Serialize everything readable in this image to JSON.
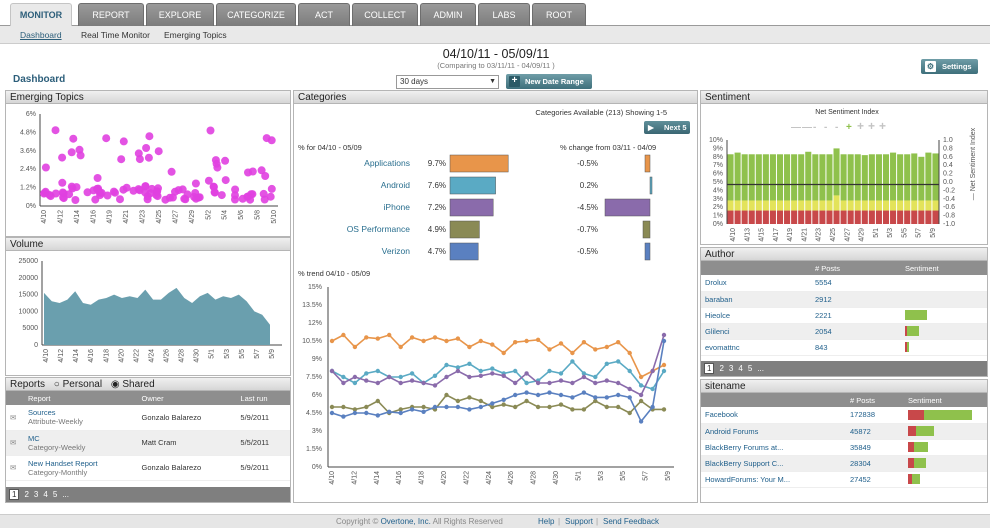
{
  "nav": {
    "tabs": [
      "MONITOR",
      "REPORT",
      "EXPLORE",
      "CATEGORIZE",
      "ACT",
      "COLLECT",
      "ADMIN",
      "LABS",
      "ROOT"
    ],
    "subnav": [
      "Dashboard",
      "Real Time Monitor",
      "Emerging Topics"
    ]
  },
  "header": {
    "page_title": "Dashboard",
    "date_range": "04/10/11 - 05/09/11",
    "compare": "(Comparing to 03/11/11 - 04/09/11 )",
    "range_value": "30 days",
    "new_range_label": "New Date Range",
    "settings_label": "Settings"
  },
  "emerging": {
    "title": "Emerging Topics",
    "y_ticks": [
      "6%",
      "4.8%",
      "3.6%",
      "2.4%",
      "1.2%",
      "0%"
    ],
    "x_ticks": [
      "4/10",
      "4/12",
      "4/14",
      "4/16",
      "4/19",
      "4/21",
      "4/23",
      "4/25",
      "4/27",
      "4/29",
      "5/2",
      "5/4",
      "5/6",
      "5/8",
      "5/10"
    ],
    "color": "#e040e0"
  },
  "volume": {
    "title": "Volume",
    "y_ticks": [
      "25000",
      "20000",
      "15000",
      "10000",
      "5000",
      "0"
    ],
    "x_ticks": [
      "4/10",
      "4/12",
      "4/14",
      "4/16",
      "4/18",
      "4/20",
      "4/22",
      "4/24",
      "4/26",
      "4/28",
      "4/30",
      "5/1",
      "5/3",
      "5/5",
      "5/7",
      "5/9"
    ],
    "values": [
      15500,
      13000,
      12500,
      13500,
      16000,
      12500,
      12000,
      13500,
      14000,
      15000,
      14000,
      14500,
      14000,
      16500,
      13500,
      13500,
      15500,
      17000,
      14000,
      12500,
      14500,
      15500,
      13500,
      14500,
      14000,
      15000,
      13000,
      10000,
      9000,
      6000
    ],
    "color": "#6a9fae"
  },
  "reports": {
    "title": "Reports",
    "radio_personal": "Personal",
    "radio_shared": "Shared",
    "columns": [
      "Report",
      "Owner",
      "Last run"
    ],
    "rows": [
      {
        "name": "Sources",
        "sub": "Attribute-Weekly",
        "owner": "Gonzalo Balarezo",
        "last": "5/9/2011"
      },
      {
        "name": "MC",
        "sub": "Category-Weekly",
        "owner": "Matt Cram",
        "last": "5/5/2011"
      },
      {
        "name": "New Handset Report",
        "sub": "Category-Monthly",
        "owner": "Gonzalo Balarezo",
        "last": "5/9/2011"
      }
    ],
    "pages": [
      "1",
      "2",
      "3",
      "4",
      "5",
      "..."
    ]
  },
  "categories": {
    "title": "Categories",
    "available": "Categories Available (213)  Showing 1-5",
    "next_label": "Next 5",
    "pct_for": "% for 04/10 - 05/09",
    "pct_change": "% change from 03/11 - 04/09",
    "trend_label": "% trend 04/10 - 05/09",
    "items": [
      {
        "name": "Applications",
        "pct": "9.7%",
        "value": 9.7,
        "change": "-0.5%",
        "change_value": -0.5,
        "color": "#e8954a"
      },
      {
        "name": "Android",
        "pct": "7.6%",
        "value": 7.6,
        "change": "0.2%",
        "change_value": 0.2,
        "color": "#5aaac4"
      },
      {
        "name": "iPhone",
        "pct": "7.2%",
        "value": 7.2,
        "change": "-4.5%",
        "change_value": -4.5,
        "color": "#8a6bab"
      },
      {
        "name": "OS Performance",
        "pct": "4.9%",
        "value": 4.9,
        "change": "-0.7%",
        "change_value": -0.7,
        "color": "#8a8a55"
      },
      {
        "name": "Verizon",
        "pct": "4.7%",
        "value": 4.7,
        "change": "-0.5%",
        "change_value": -0.5,
        "color": "#5a80c0"
      }
    ],
    "trend_y_ticks": [
      "15%",
      "13.5%",
      "12%",
      "10.5%",
      "9%",
      "7.5%",
      "6%",
      "4.5%",
      "3%",
      "1.5%",
      "0%"
    ],
    "trend_x_ticks": [
      "4/10",
      "4/12",
      "4/14",
      "4/16",
      "4/18",
      "4/20",
      "4/22",
      "4/24",
      "4/26",
      "4/28",
      "4/30",
      "5/1",
      "5/3",
      "5/5",
      "5/7",
      "5/9"
    ],
    "trend_series": [
      {
        "color": "#e8954a",
        "values": [
          10.5,
          11.0,
          10.0,
          10.8,
          10.7,
          11.0,
          10.0,
          10.8,
          10.5,
          10.8,
          10.5,
          10.7,
          10.0,
          10.5,
          10.2,
          9.5,
          10.4,
          10.5,
          10.6,
          9.8,
          10.3,
          9.5,
          10.4,
          9.8,
          10.0,
          10.4,
          9.5,
          7.5,
          8.0,
          8.5
        ]
      },
      {
        "color": "#5aaac4",
        "values": [
          8.0,
          7.5,
          7.0,
          7.8,
          8.0,
          7.5,
          7.5,
          7.8,
          7.0,
          7.6,
          8.5,
          8.3,
          8.6,
          8.0,
          8.2,
          7.8,
          8.0,
          7.0,
          7.2,
          8.0,
          7.8,
          8.8,
          7.8,
          7.5,
          8.6,
          8.8,
          8.0,
          6.8,
          6.5,
          8.0
        ]
      },
      {
        "color": "#8a6bab",
        "values": [
          8.0,
          7.0,
          7.5,
          7.2,
          7.0,
          7.5,
          7.0,
          7.2,
          7.0,
          6.8,
          7.5,
          8.0,
          7.5,
          7.6,
          7.8,
          7.6,
          7.0,
          7.8,
          7.0,
          7.0,
          7.2,
          7.0,
          7.5,
          7.0,
          7.2,
          7.0,
          6.5,
          6.0,
          8.0,
          11.0
        ]
      },
      {
        "color": "#8a8a55",
        "values": [
          5.0,
          5.0,
          4.8,
          5.0,
          5.5,
          4.5,
          4.8,
          5.0,
          5.0,
          4.8,
          6.0,
          5.5,
          5.8,
          5.5,
          5.0,
          5.2,
          5.0,
          5.5,
          5.0,
          5.0,
          5.2,
          4.8,
          4.8,
          5.5,
          5.0,
          5.0,
          4.5,
          5.5,
          4.8,
          4.8
        ]
      },
      {
        "color": "#5a80c0",
        "values": [
          4.5,
          4.2,
          4.5,
          4.5,
          4.3,
          4.6,
          4.5,
          4.8,
          4.6,
          5.0,
          5.0,
          5.0,
          4.8,
          5.0,
          5.3,
          5.6,
          6.0,
          6.2,
          6.0,
          6.2,
          6.0,
          5.8,
          6.2,
          5.8,
          5.8,
          6.0,
          5.8,
          3.8,
          5.0,
          10.5
        ]
      }
    ]
  },
  "sentiment": {
    "title": "Sentiment",
    "chart_title": "Net Sentiment Index",
    "y_left": [
      "10%",
      "9%",
      "8%",
      "7%",
      "6%",
      "5%",
      "4%",
      "3%",
      "2%",
      "1%",
      "0%"
    ],
    "y_right": [
      "1.0",
      "0.8",
      "0.6",
      "0.4",
      "0.2",
      "0.0",
      "-0.2",
      "-0.4",
      "-0.6",
      "-0.8",
      "-1.0"
    ],
    "x_ticks": [
      "4/10",
      "4/13",
      "4/15",
      "4/17",
      "4/19",
      "4/21",
      "4/23",
      "4/25",
      "4/27",
      "4/29",
      "5/1",
      "5/3",
      "5/5",
      "5/7",
      "5/9"
    ],
    "right_label": "— Net Sentiment Index",
    "colors": {
      "positive": "#8fc14c",
      "neutral": "#e3e35a",
      "negative": "#c8484a"
    },
    "bars": [
      8.3,
      8.5,
      8.3,
      8.3,
      8.3,
      8.3,
      8.3,
      8.3,
      8.3,
      8.3,
      8.3,
      8.6,
      8.3,
      8.3,
      8.3,
      9.0,
      8.3,
      8.3,
      8.3,
      8.2,
      8.3,
      8.3,
      8.3,
      8.5,
      8.3,
      8.3,
      8.4,
      8.0,
      8.5,
      8.4
    ],
    "neg": [
      1.6,
      1.6,
      1.6,
      1.6,
      1.6,
      1.6,
      1.6,
      1.6,
      1.6,
      1.6,
      1.6,
      1.6,
      1.6,
      1.6,
      1.6,
      1.6,
      1.6,
      1.6,
      1.6,
      1.6,
      1.6,
      1.6,
      1.6,
      1.6,
      1.6,
      1.6,
      1.6,
      1.6,
      1.6,
      1.6
    ],
    "neu": [
      1.2,
      1.2,
      1.2,
      1.2,
      1.2,
      1.2,
      1.2,
      1.2,
      1.2,
      1.2,
      1.2,
      1.2,
      1.2,
      1.2,
      1.2,
      1.8,
      1.2,
      1.2,
      1.2,
      1.2,
      1.2,
      1.2,
      1.2,
      1.2,
      1.2,
      1.2,
      1.2,
      1.2,
      1.2,
      1.2
    ]
  },
  "author": {
    "title": "Author",
    "columns": [
      "",
      "# Posts",
      "Sentiment"
    ],
    "rows": [
      {
        "name": "Drolux",
        "posts": "5554",
        "pos": 0,
        "neg": 0
      },
      {
        "name": "baraban",
        "posts": "2912",
        "pos": 0,
        "neg": 0
      },
      {
        "name": "Hieolce",
        "posts": "2221",
        "pos": 22,
        "neg": 0
      },
      {
        "name": "Glilenci",
        "posts": "2054",
        "pos": 12,
        "neg": 2
      },
      {
        "name": "evomattnc",
        "posts": "843",
        "pos": 2,
        "neg": 2
      }
    ],
    "pages": [
      "1",
      "2",
      "3",
      "4",
      "5",
      "..."
    ]
  },
  "sitename": {
    "title": "sitename",
    "columns": [
      "",
      "# Posts",
      "Sentiment"
    ],
    "rows": [
      {
        "name": "Facebook",
        "posts": "172838",
        "pos": 48,
        "neg": 16
      },
      {
        "name": "Android Forums",
        "posts": "45872",
        "pos": 18,
        "neg": 8
      },
      {
        "name": "BlackBerry Forums at...",
        "posts": "35849",
        "pos": 14,
        "neg": 6
      },
      {
        "name": "BlackBerry Support C...",
        "posts": "28304",
        "pos": 12,
        "neg": 6
      },
      {
        "name": "HowardForums: Your M...",
        "posts": "27452",
        "pos": 8,
        "neg": 4
      }
    ]
  },
  "footer": {
    "copyright": "Copyright © ",
    "company": "Overtone, Inc.",
    "rights": " All Rights Reserved",
    "help": "Help",
    "support": "Support",
    "feedback": "Send Feedback"
  }
}
